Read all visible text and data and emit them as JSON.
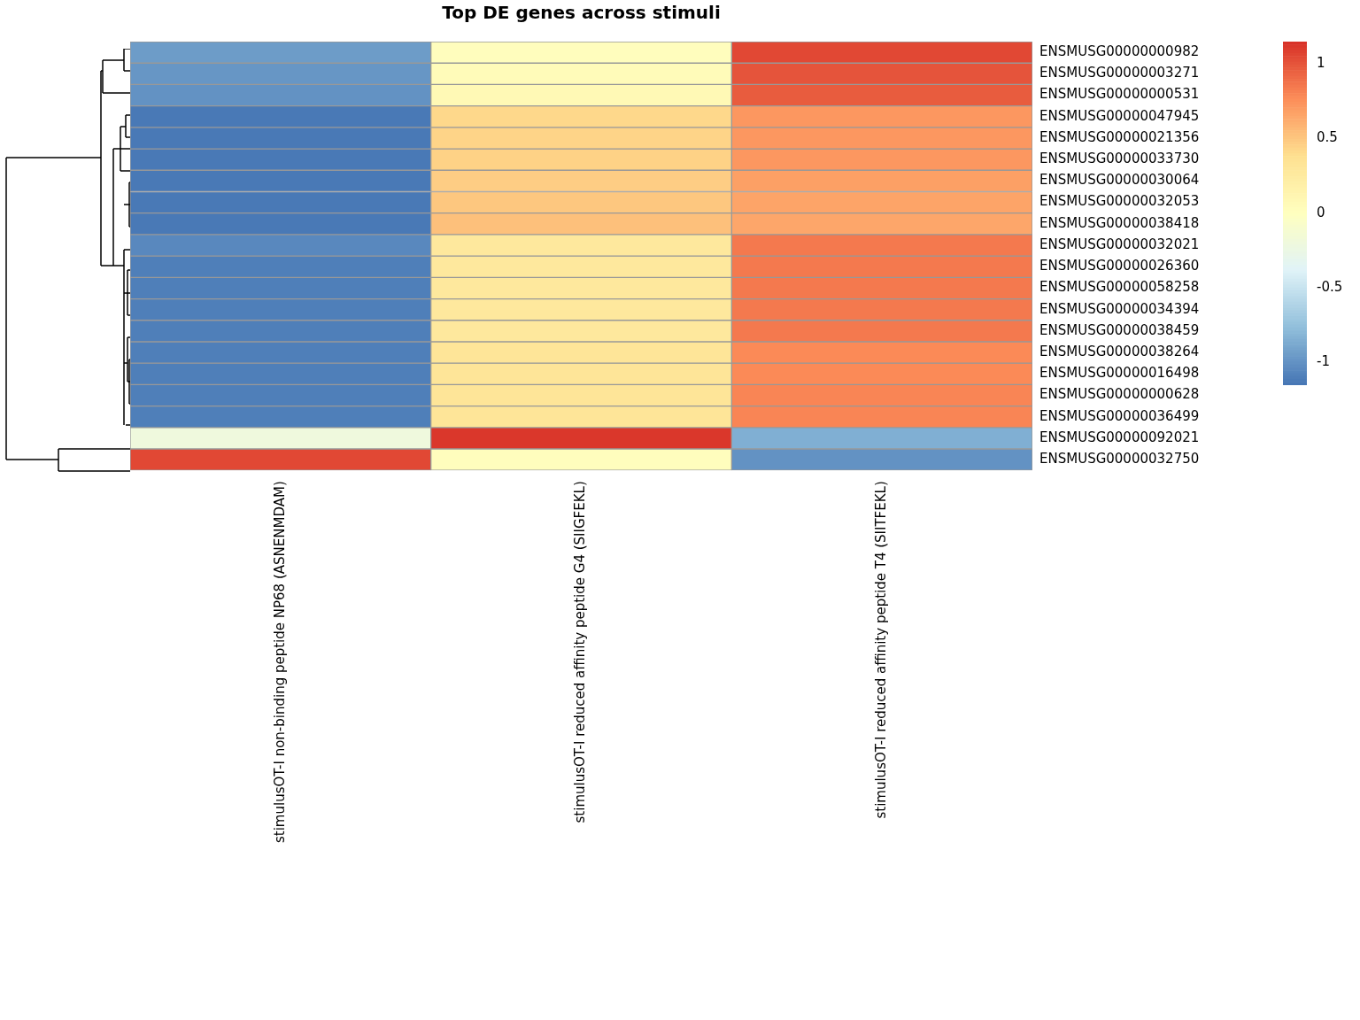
{
  "chart_data": {
    "type": "heatmap",
    "title": "Top DE genes across stimuli",
    "categories": [
      "stimulusOT-I non-binding peptide NP68 (ASNENMDAM)",
      "stimulusOT-I reduced affinity peptide G4 (SIIGFEKL)",
      "stimulusOT-I reduced affinity peptide T4 (SIITFEKL)"
    ],
    "y_categories": [
      "ENSMUSG00000000982",
      "ENSMUSG00000003271",
      "ENSMUSG00000000531",
      "ENSMUSG00000047945",
      "ENSMUSG00000021356",
      "ENSMUSG00000033730",
      "ENSMUSG00000030064",
      "ENSMUSG00000032053",
      "ENSMUSG00000038418",
      "ENSMUSG00000032021",
      "ENSMUSG00000026360",
      "ENSMUSG00000058258",
      "ENSMUSG00000034394",
      "ENSMUSG00000038459",
      "ENSMUSG00000038264",
      "ENSMUSG00000016498",
      "ENSMUSG00000000628",
      "ENSMUSG00000036499",
      "ENSMUSG00000092021",
      "ENSMUSG00000032750"
    ],
    "cells": [
      [
        -0.95,
        0.02,
        1.05
      ],
      [
        -0.98,
        0.05,
        1.0
      ],
      [
        -1.0,
        0.08,
        0.97
      ],
      [
        -1.13,
        0.42,
        0.72
      ],
      [
        -1.13,
        0.44,
        0.72
      ],
      [
        -1.13,
        0.45,
        0.72
      ],
      [
        -1.13,
        0.47,
        0.68
      ],
      [
        -1.13,
        0.5,
        0.66
      ],
      [
        -1.13,
        0.53,
        0.65
      ],
      [
        -1.05,
        0.28,
        0.85
      ],
      [
        -1.1,
        0.28,
        0.85
      ],
      [
        -1.1,
        0.28,
        0.85
      ],
      [
        -1.1,
        0.28,
        0.85
      ],
      [
        -1.1,
        0.28,
        0.85
      ],
      [
        -1.1,
        0.32,
        0.78
      ],
      [
        -1.1,
        0.32,
        0.78
      ],
      [
        -1.1,
        0.32,
        0.8
      ],
      [
        -1.1,
        0.32,
        0.8
      ],
      [
        -0.2,
        1.12,
        -0.85
      ],
      [
        1.05,
        0.02,
        -1.0
      ]
    ],
    "clim": [
      -1.15,
      1.15
    ],
    "cticks": [
      -1,
      -0.5,
      0,
      0.5,
      1
    ]
  }
}
